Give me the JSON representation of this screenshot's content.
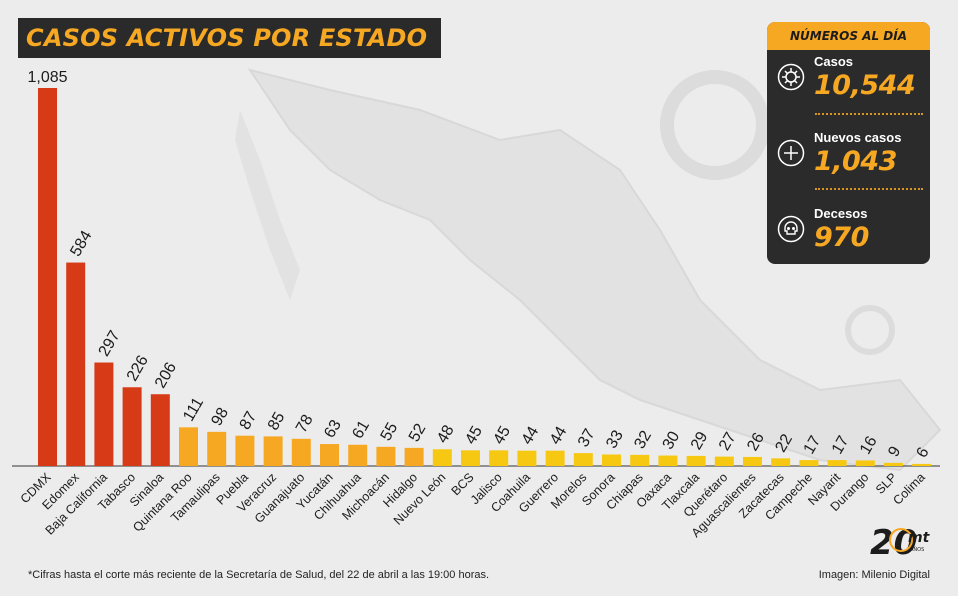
{
  "title": "CASOS ACTIVOS POR ESTADO",
  "panel": {
    "header": "NÚMEROS AL DÍA",
    "stats": [
      {
        "label": "Casos",
        "value": "10,544",
        "icon": "virus-icon"
      },
      {
        "label": "Nuevos casos",
        "value": "1,043",
        "icon": "plus-circle-icon"
      },
      {
        "label": "Decesos",
        "value": "970",
        "icon": "skull-icon"
      }
    ]
  },
  "footnote": "*Cifras hasta el corte más reciente de la Secretaría de Salud, del 22 de abril a las 19:00 horas.",
  "credit": "Imagen: Milenio Digital",
  "logo": {
    "text": "20",
    "sub": "mt",
    "tiny": "AÑOS"
  },
  "colors": {
    "red": "#d63a17",
    "orange": "#f7a823",
    "yellow": "#f7c812",
    "dark": "#2b2b2b"
  },
  "chart_data": {
    "type": "bar",
    "title": "CASOS ACTIVOS POR ESTADO",
    "categories": [
      "CDMX",
      "Edomex",
      "Baja California",
      "Tabasco",
      "Sinaloa",
      "Quintana Roo",
      "Tamaulipas",
      "Puebla",
      "Veracruz",
      "Guanajuato",
      "Yucatán",
      "Chihuahua",
      "Michoacán",
      "Hidalgo",
      "Nuevo León",
      "BCS",
      "Jalisco",
      "Coahuila",
      "Guerrero",
      "Morelos",
      "Sonora",
      "Chiapas",
      "Oaxaca",
      "Tlaxcala",
      "Querétaro",
      "Aguascalientes",
      "Zacatecas",
      "Campeche",
      "Nayarit",
      "Durango",
      "SLP",
      "Colima"
    ],
    "values": [
      1085,
      584,
      297,
      226,
      206,
      111,
      98,
      87,
      85,
      78,
      63,
      61,
      55,
      52,
      48,
      45,
      45,
      44,
      44,
      37,
      33,
      32,
      30,
      29,
      27,
      26,
      22,
      17,
      17,
      16,
      9,
      6
    ],
    "value_labels": [
      "1,085",
      "584",
      "297",
      "226",
      "206",
      "111",
      "98",
      "87",
      "85",
      "78",
      "63",
      "61",
      "55",
      "52",
      "48",
      "45",
      "45",
      "44",
      "44",
      "37",
      "33",
      "32",
      "30",
      "29",
      "27",
      "26",
      "22",
      "17",
      "17",
      "16",
      "9",
      "6"
    ],
    "bar_colors": [
      "#d63a17",
      "#d63a17",
      "#d63a17",
      "#d63a17",
      "#d63a17",
      "#f7a823",
      "#f7a823",
      "#f7a823",
      "#f7a823",
      "#f7a823",
      "#f7a823",
      "#f7a823",
      "#f7a823",
      "#f7a823",
      "#f7c812",
      "#f7c812",
      "#f7c812",
      "#f7c812",
      "#f7c812",
      "#f7c812",
      "#f7c812",
      "#f7c812",
      "#f7c812",
      "#f7c812",
      "#f7c812",
      "#f7c812",
      "#f7c812",
      "#f7c812",
      "#f7c812",
      "#f7c812",
      "#f7c812",
      "#f7c812"
    ],
    "xlabel": "",
    "ylabel": "",
    "ylim": [
      0,
      1085
    ],
    "grid": false,
    "legend": "none"
  }
}
